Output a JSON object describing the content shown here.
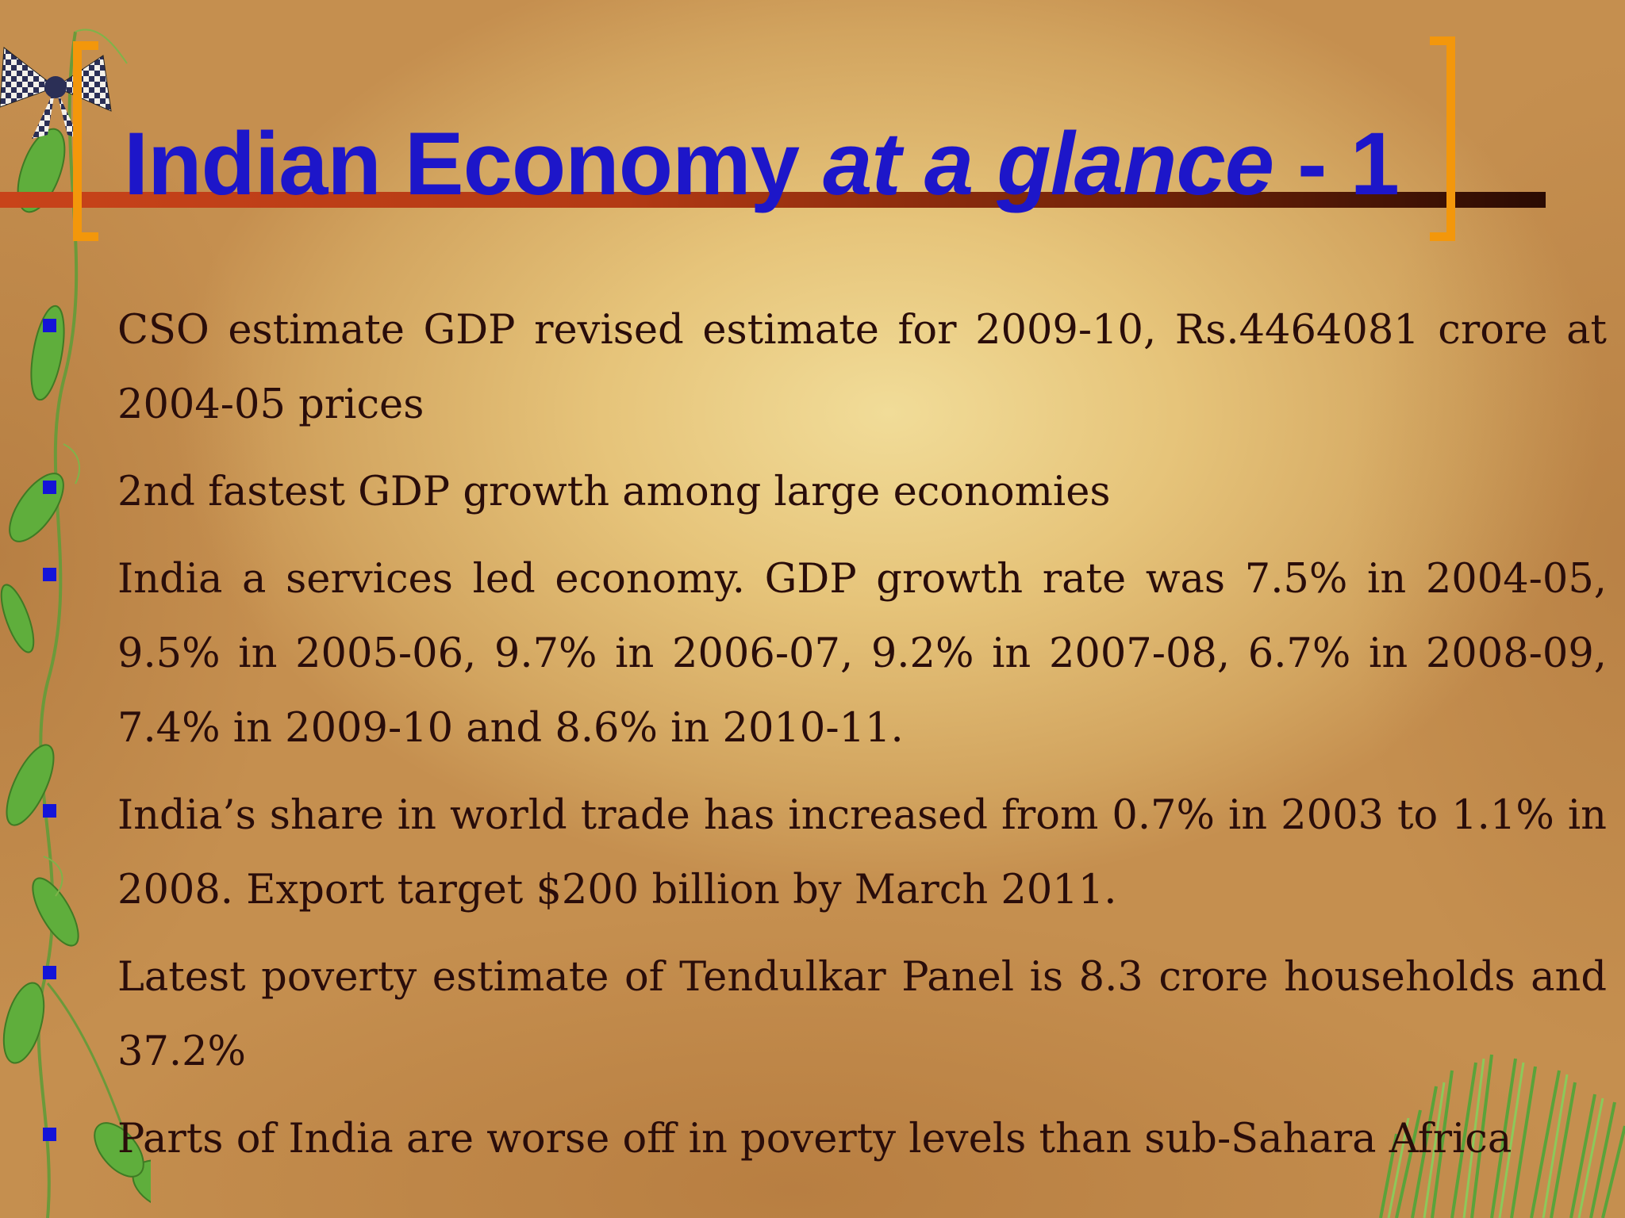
{
  "slide": {
    "title_main": "Indian Economy ",
    "title_italic": "at a glance",
    "title_suffix": " - 1",
    "bullets": [
      "CSO estimate GDP revised estimate for 2009-10, Rs.4464081 crore at 2004-05 prices",
      "2nd fastest GDP growth among large economies",
      "India a services led economy. GDP growth rate was 7.5% in 2004-05, 9.5% in 2005-06, 9.7% in 2006-07, 9.2% in 2007-08, 6.7% in 2008-09, 7.4% in 2009-10 and 8.6% in 2010-11.",
      "India’s share in world trade has increased from 0.7% in 2003 to 1.1% in 2008. Export target $200 billion by March 2011.",
      "Latest poverty estimate of Tendulkar Panel is 8.3 crore households and 37.2%",
      "Parts of India are worse off in poverty levels than sub-Sahara Africa"
    ]
  },
  "colors": {
    "title": "#1d16c9",
    "bracket": "#f3970b",
    "bullet_marker": "#1414d8",
    "body_text": "#2a0d0a"
  },
  "decor": {
    "left": "vine-with-leaves",
    "top_left": "checkered-bow",
    "bottom_right": "grass-tuft"
  }
}
